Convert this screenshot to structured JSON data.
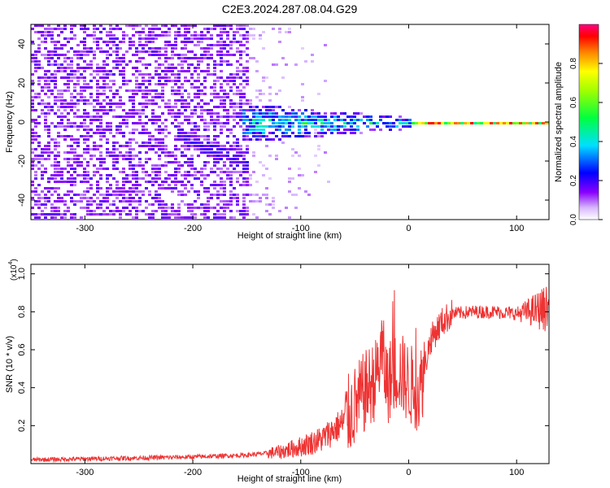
{
  "title": "C2E3.2024.287.08.04.G29",
  "chart_data": [
    {
      "type": "heatmap",
      "title": "C2E3.2024.287.08.04.G29",
      "xlabel": "Height of straight line (km)",
      "ylabel": "Frequency (Hz)",
      "xlim": [
        -350,
        130
      ],
      "ylim": [
        -50,
        50
      ],
      "xticks": [
        -300,
        -200,
        -100,
        0,
        100
      ],
      "yticks": [
        -40,
        -20,
        0,
        20,
        40
      ],
      "xtick_labels": [
        "-300",
        "-200",
        "-100",
        "0",
        "100"
      ],
      "ytick_labels": [
        "-40",
        "-20",
        "0",
        "20",
        "40"
      ],
      "colorbar": {
        "label": "Normalized spectral amplitude",
        "range": [
          0,
          1
        ],
        "ticks": [
          0.0,
          0.2,
          0.4,
          0.6,
          0.8
        ],
        "tick_labels": [
          "0.0",
          "0.2",
          "0.4",
          "0.6",
          "0.8"
        ]
      },
      "features": {
        "noise_region_x": [
          -350,
          -70
        ],
        "dense_noise_x": [
          -350,
          -150
        ],
        "drift_line": {
          "x": [
            -215,
            -150
          ],
          "freq": [
            -5,
            -22
          ]
        },
        "carrier_band": {
          "x": [
            -155,
            130
          ],
          "freq": 0,
          "peak_amplitude": 0.95
        }
      }
    },
    {
      "type": "line",
      "xlabel": "Height of straight line (km)",
      "ylabel": "SNR (10 * v/v)",
      "y_scale_label": "(x10",
      "y_scale_exp": "4",
      "y_scale_close": ")",
      "xlim": [
        -350,
        130
      ],
      "ylim": [
        0,
        1.05
      ],
      "xticks": [
        -300,
        -200,
        -100,
        0,
        100
      ],
      "yticks": [
        0.2,
        0.4,
        0.6,
        0.8,
        1.0
      ],
      "xtick_labels": [
        "-300",
        "-200",
        "-100",
        "0",
        "100"
      ],
      "ytick_labels": [
        "0.2",
        "0.4",
        "0.6",
        "0.8",
        "1.0"
      ],
      "color": "#ee3333",
      "series": [
        {
          "name": "SNR",
          "x": [
            -350,
            -300,
            -250,
            -200,
            -150,
            -120,
            -100,
            -80,
            -60,
            -50,
            -40,
            -30,
            -25,
            -20,
            -10,
            0,
            10,
            20,
            30,
            40,
            60,
            80,
            100,
            120,
            130
          ],
          "y": [
            0.02,
            0.025,
            0.03,
            0.035,
            0.045,
            0.06,
            0.09,
            0.13,
            0.22,
            0.3,
            0.38,
            0.45,
            0.6,
            0.42,
            0.5,
            0.42,
            0.38,
            0.65,
            0.74,
            0.79,
            0.8,
            0.8,
            0.79,
            0.81,
            0.82
          ]
        }
      ]
    }
  ]
}
